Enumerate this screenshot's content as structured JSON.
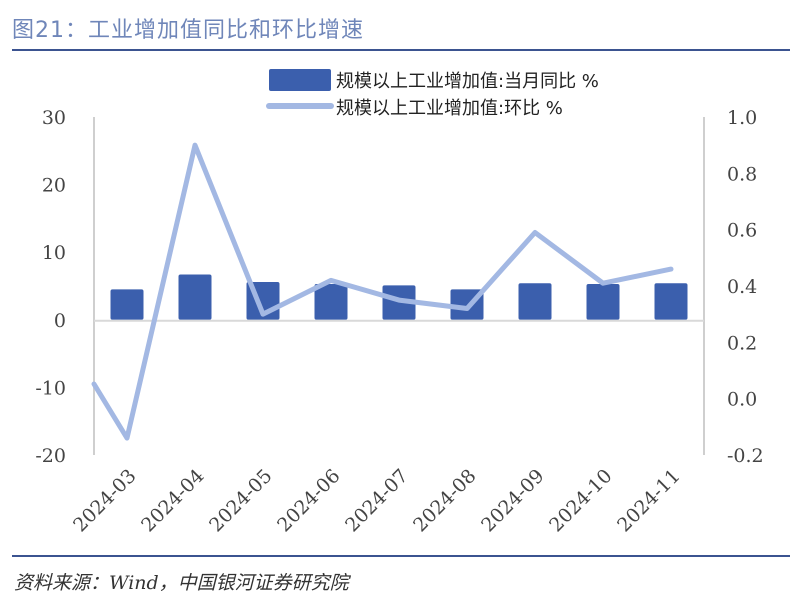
{
  "title": "图21：工业增加值同比和环比增速",
  "source": "资料来源：Wind，中国银河证券研究院",
  "colors": {
    "bar": "#3b5fad",
    "line": "#a3b8e3",
    "axis": "#cfcfcf",
    "title": "#6f86b9",
    "rule": "#3b5390"
  },
  "chart_data": {
    "type": "bar+line",
    "categories": [
      "2024-03",
      "2024-04",
      "2024-05",
      "2024-06",
      "2024-07",
      "2024-08",
      "2024-09",
      "2024-10",
      "2024-11"
    ],
    "series": [
      {
        "name": "规模以上工业增加值:当月同比 %",
        "type": "bar",
        "axis": "left",
        "values": [
          4.5,
          6.7,
          5.6,
          5.3,
          5.1,
          4.5,
          5.4,
          5.3,
          5.4
        ]
      },
      {
        "name": "规模以上工业增加值:环比 %",
        "type": "line",
        "axis": "right",
        "values": [
          -0.14,
          0.9,
          0.3,
          0.42,
          0.35,
          0.32,
          0.59,
          0.41,
          0.46
        ]
      }
    ],
    "left_axis": {
      "ylim": [
        -20,
        30
      ],
      "ticks": [
        "30",
        "20",
        "10",
        "0",
        "-10",
        "-20"
      ],
      "tick_values": [
        30,
        20,
        10,
        0,
        -10,
        -20
      ]
    },
    "right_axis": {
      "ylim": [
        -0.2,
        1.0
      ],
      "ticks": [
        "1.0",
        "0.8",
        "0.6",
        "0.4",
        "0.2",
        "0.0",
        "-0.2"
      ],
      "tick_values": [
        1.0,
        0.8,
        0.6,
        0.4,
        0.2,
        0.0,
        -0.2
      ]
    },
    "legend_position": "top-right"
  }
}
